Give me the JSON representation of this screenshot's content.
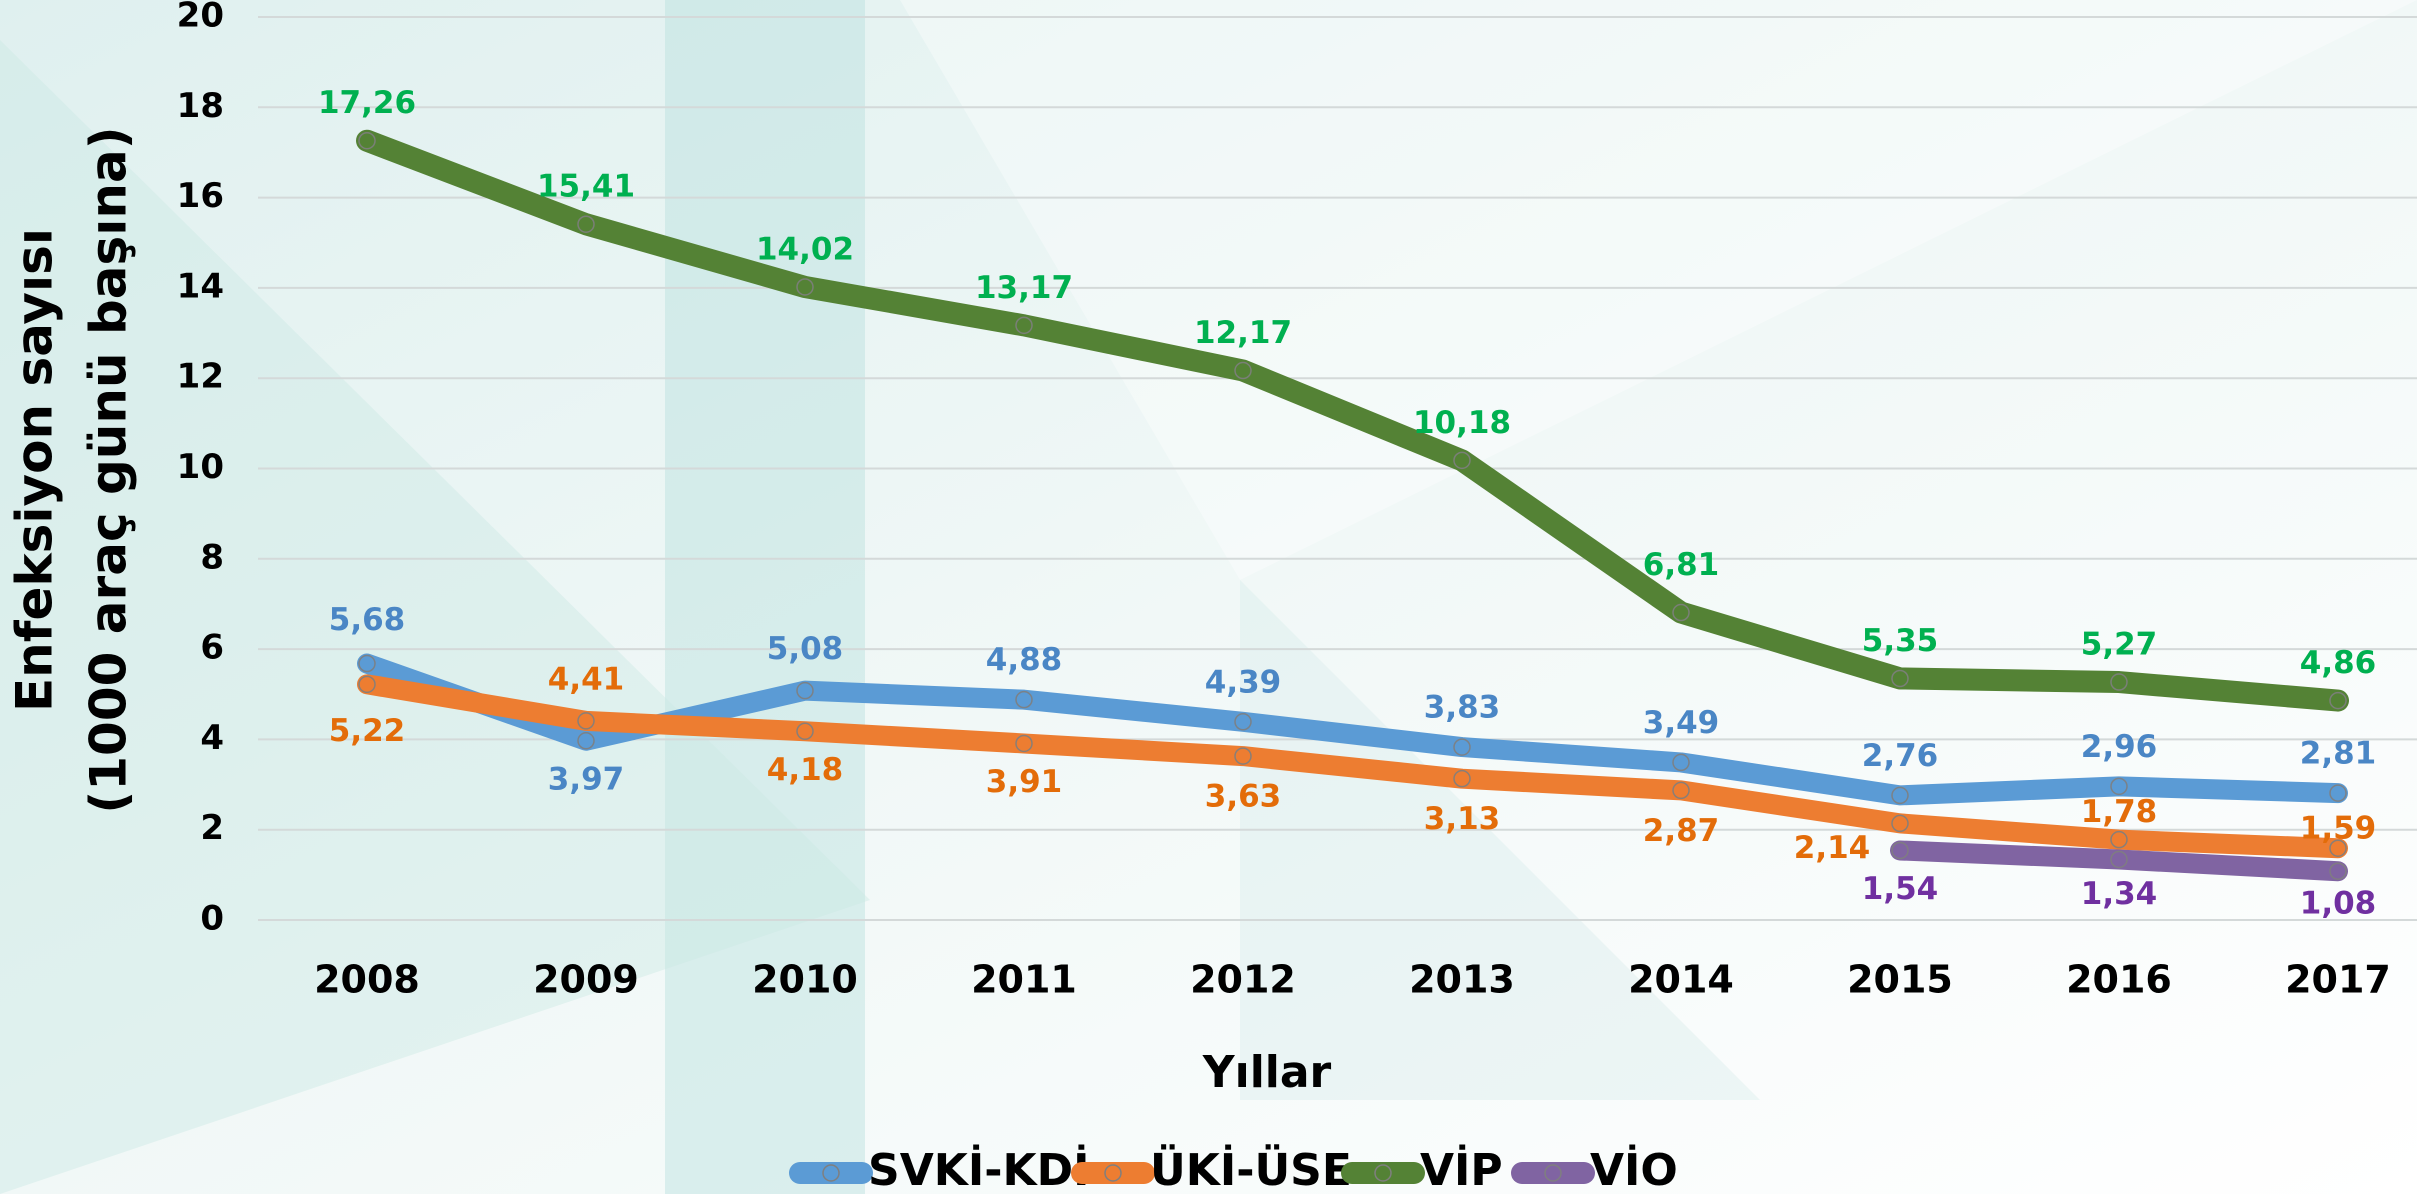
{
  "chart_data": {
    "type": "line",
    "x_label": "Yıllar",
    "y_label": [
      "Enfeksiyon sayısı",
      "(1000 araç günü başına)"
    ],
    "categories": [
      "2008",
      "2009",
      "2010",
      "2011",
      "2012",
      "2013",
      "2014",
      "2015",
      "2016",
      "2017"
    ],
    "series": [
      {
        "name": "SVKİ-KDİ",
        "color": "#5b9bd5",
        "label_color": "#4a86c5",
        "values": [
          5.68,
          3.97,
          5.08,
          4.88,
          4.39,
          3.83,
          3.49,
          2.76,
          2.96,
          2.81
        ],
        "value_labels": [
          "5,68",
          "3,97",
          "5,08",
          "4,88",
          "4,39",
          "3,83",
          "3,49",
          "2,76",
          "2,96",
          "2,81"
        ]
      },
      {
        "name": "ÜKİ-ÜSE",
        "color": "#ed7d31",
        "label_color": "#e36c09",
        "values": [
          5.22,
          4.41,
          4.18,
          3.91,
          3.63,
          3.13,
          2.87,
          2.14,
          1.78,
          1.59
        ],
        "value_labels": [
          "5,22",
          "4,41",
          "4,18",
          "3,91",
          "3,63",
          "3,13",
          "2,87",
          "2,14",
          "1,78",
          "1,59"
        ]
      },
      {
        "name": "VİP",
        "color": "#548235",
        "label_color": "#00b050",
        "values": [
          17.26,
          15.41,
          14.02,
          13.17,
          12.17,
          10.18,
          6.81,
          5.35,
          5.27,
          4.86
        ],
        "value_labels": [
          "17,26",
          "15,41",
          "14,02",
          "13,17",
          "12,17",
          "10,18",
          "6,81",
          "5,35",
          "5,27",
          "4,86"
        ]
      },
      {
        "name": "VİO",
        "color": "#8064a2",
        "label_color": "#7030a0",
        "values": [
          null,
          null,
          null,
          null,
          null,
          null,
          null,
          1.54,
          1.34,
          1.08
        ],
        "value_labels": [
          null,
          null,
          null,
          null,
          null,
          null,
          null,
          "1,54",
          "1,34",
          "1,08"
        ]
      }
    ],
    "ylim": [
      0,
      20
    ],
    "yticks": [
      0,
      2,
      4,
      6,
      8,
      10,
      12,
      14,
      16,
      18,
      20
    ],
    "grid": true,
    "legend": "bottom"
  }
}
